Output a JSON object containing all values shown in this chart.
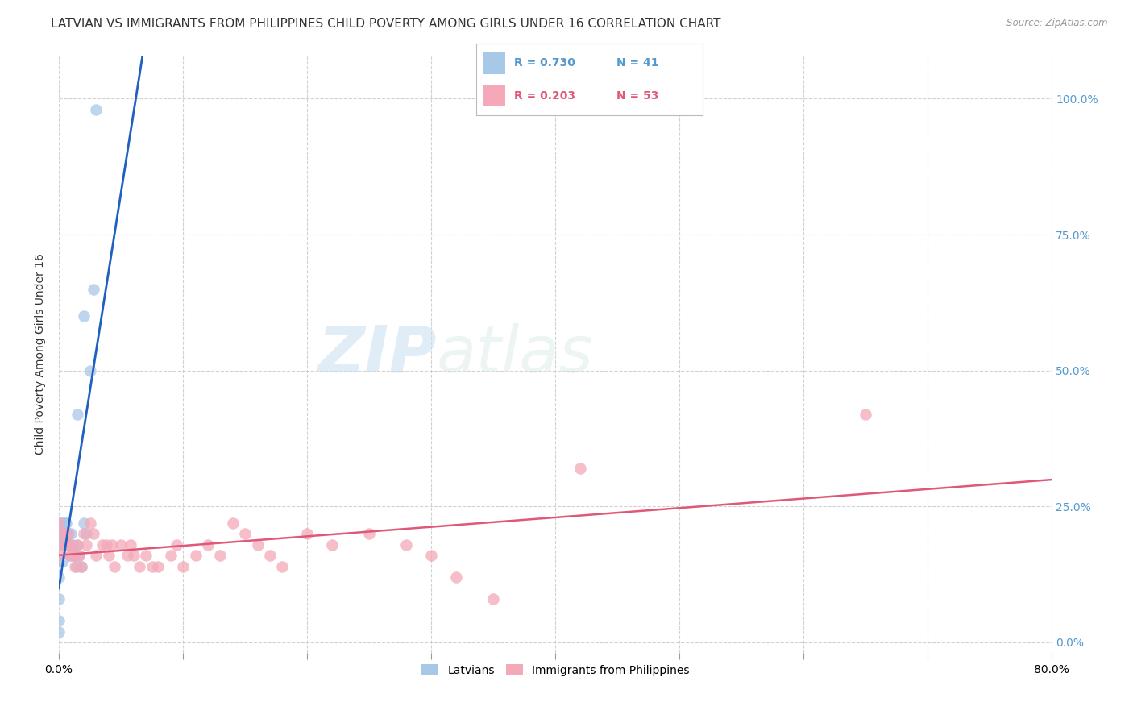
{
  "title": "LATVIAN VS IMMIGRANTS FROM PHILIPPINES CHILD POVERTY AMONG GIRLS UNDER 16 CORRELATION CHART",
  "source": "Source: ZipAtlas.com",
  "ylabel": "Child Poverty Among Girls Under 16",
  "ytick_labels": [
    "100.0%",
    "75.0%",
    "50.0%",
    "25.0%",
    "0.0%"
  ],
  "ytick_values": [
    1.0,
    0.75,
    0.5,
    0.25,
    0.0
  ],
  "xlim": [
    0.0,
    0.8
  ],
  "ylim": [
    -0.02,
    1.08
  ],
  "watermark_zip": "ZIP",
  "watermark_atlas": "atlas",
  "legend_latvian": "Latvians",
  "legend_philippines": "Immigrants from Philippines",
  "R_latvian": 0.73,
  "N_latvian": 41,
  "R_philippines": 0.203,
  "N_philippines": 53,
  "color_latvian": "#a8c8e8",
  "color_philippines": "#f4a8b8",
  "line_color_latvian": "#2060c0",
  "line_color_philippines": "#e05878",
  "latvian_x": [
    0.0,
    0.0,
    0.0,
    0.0,
    0.0,
    0.0,
    0.0,
    0.0,
    0.002,
    0.002,
    0.002,
    0.003,
    0.003,
    0.003,
    0.003,
    0.005,
    0.005,
    0.005,
    0.006,
    0.006,
    0.007,
    0.007,
    0.008,
    0.008,
    0.009,
    0.01,
    0.01,
    0.011,
    0.012,
    0.013,
    0.014,
    0.015,
    0.016,
    0.018,
    0.02,
    0.022,
    0.025,
    0.028,
    0.03,
    0.02,
    0.015
  ],
  "latvian_y": [
    0.22,
    0.2,
    0.18,
    0.15,
    0.12,
    0.08,
    0.04,
    0.02,
    0.22,
    0.2,
    0.18,
    0.22,
    0.2,
    0.18,
    0.15,
    0.22,
    0.2,
    0.18,
    0.22,
    0.2,
    0.2,
    0.18,
    0.2,
    0.18,
    0.18,
    0.2,
    0.16,
    0.18,
    0.16,
    0.16,
    0.14,
    0.18,
    0.16,
    0.14,
    0.22,
    0.2,
    0.5,
    0.65,
    0.98,
    0.6,
    0.42
  ],
  "philippines_x": [
    0.0,
    0.0,
    0.002,
    0.003,
    0.005,
    0.006,
    0.007,
    0.008,
    0.009,
    0.01,
    0.012,
    0.013,
    0.015,
    0.016,
    0.018,
    0.02,
    0.022,
    0.025,
    0.028,
    0.03,
    0.035,
    0.038,
    0.04,
    0.043,
    0.045,
    0.05,
    0.055,
    0.058,
    0.06,
    0.065,
    0.07,
    0.075,
    0.08,
    0.09,
    0.095,
    0.1,
    0.11,
    0.12,
    0.13,
    0.14,
    0.15,
    0.16,
    0.17,
    0.18,
    0.2,
    0.22,
    0.25,
    0.28,
    0.3,
    0.32,
    0.35,
    0.65,
    0.42
  ],
  "philippines_y": [
    0.22,
    0.16,
    0.2,
    0.18,
    0.2,
    0.18,
    0.2,
    0.18,
    0.16,
    0.18,
    0.16,
    0.14,
    0.18,
    0.16,
    0.14,
    0.2,
    0.18,
    0.22,
    0.2,
    0.16,
    0.18,
    0.18,
    0.16,
    0.18,
    0.14,
    0.18,
    0.16,
    0.18,
    0.16,
    0.14,
    0.16,
    0.14,
    0.14,
    0.16,
    0.18,
    0.14,
    0.16,
    0.18,
    0.16,
    0.22,
    0.2,
    0.18,
    0.16,
    0.14,
    0.2,
    0.18,
    0.2,
    0.18,
    0.16,
    0.12,
    0.08,
    0.42,
    0.32
  ],
  "background_color": "#ffffff",
  "grid_color": "#cccccc",
  "title_fontsize": 11,
  "axis_label_fontsize": 10,
  "tick_fontsize": 10
}
